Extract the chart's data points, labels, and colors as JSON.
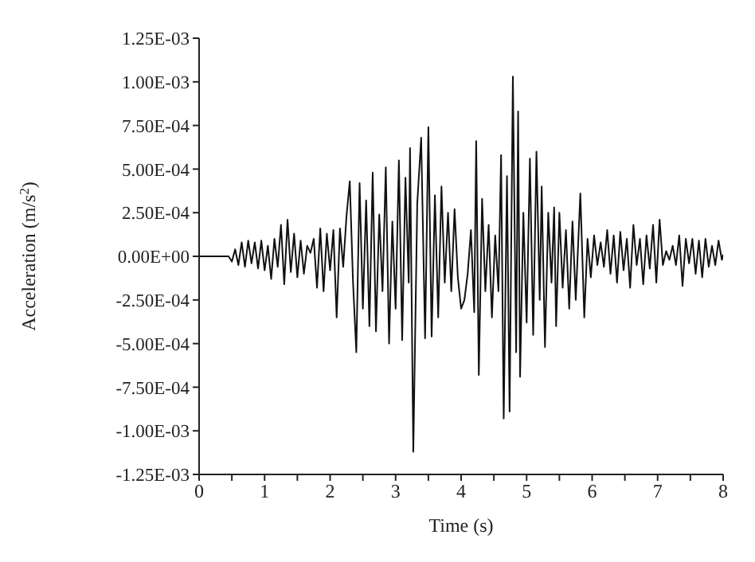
{
  "chart_data": {
    "type": "line",
    "xlabel": "Time (s)",
    "ylabel": "Acceleration (m/s$^{2}$)",
    "x": [
      0,
      0.45,
      0.5,
      0.55,
      0.6,
      0.65,
      0.7,
      0.75,
      0.8,
      0.85,
      0.9,
      0.95,
      1.0,
      1.05,
      1.1,
      1.15,
      1.2,
      1.25,
      1.3,
      1.35,
      1.4,
      1.45,
      1.5,
      1.55,
      1.6,
      1.65,
      1.7,
      1.75,
      1.8,
      1.85,
      1.9,
      1.95,
      2.0,
      2.05,
      2.1,
      2.15,
      2.2,
      2.25,
      2.3,
      2.35,
      2.4,
      2.45,
      2.5,
      2.55,
      2.6,
      2.65,
      2.7,
      2.75,
      2.8,
      2.85,
      2.9,
      2.95,
      3.0,
      3.05,
      3.1,
      3.15,
      3.2,
      3.22,
      3.27,
      3.33,
      3.39,
      3.45,
      3.5,
      3.55,
      3.6,
      3.65,
      3.7,
      3.75,
      3.8,
      3.85,
      3.9,
      3.95,
      4.0,
      4.05,
      4.1,
      4.15,
      4.2,
      4.23,
      4.27,
      4.32,
      4.37,
      4.42,
      4.47,
      4.52,
      4.57,
      4.61,
      4.65,
      4.7,
      4.74,
      4.79,
      4.84,
      4.87,
      4.9,
      4.95,
      5.0,
      5.05,
      5.1,
      5.15,
      5.2,
      5.23,
      5.28,
      5.33,
      5.38,
      5.42,
      5.45,
      5.5,
      5.55,
      5.6,
      5.65,
      5.7,
      5.75,
      5.82,
      5.88,
      5.93,
      5.98,
      6.03,
      6.08,
      6.13,
      6.18,
      6.23,
      6.28,
      6.33,
      6.38,
      6.43,
      6.48,
      6.53,
      6.58,
      6.63,
      6.68,
      6.73,
      6.78,
      6.83,
      6.88,
      6.93,
      6.98,
      7.03,
      7.08,
      7.13,
      7.18,
      7.23,
      7.28,
      7.33,
      7.38,
      7.43,
      7.48,
      7.53,
      7.58,
      7.63,
      7.68,
      7.73,
      7.78,
      7.83,
      7.88,
      7.93,
      7.98,
      8.0
    ],
    "series": [
      {
        "color": "#111111",
        "values": [
          0,
          0,
          -3e-05,
          4e-05,
          -5e-05,
          8e-05,
          -6e-05,
          9e-05,
          -4e-05,
          8e-05,
          -7e-05,
          9e-05,
          -8e-05,
          6e-05,
          -0.00013,
          0.0001,
          -6e-05,
          0.00018,
          -0.00016,
          0.00021,
          -9e-05,
          0.00013,
          -0.00012,
          9e-05,
          -0.0001,
          6e-05,
          2e-05,
          0.0001,
          -0.00018,
          0.00016,
          -0.0002,
          0.00013,
          -8e-05,
          0.00015,
          -0.00035,
          0.00016,
          -6e-05,
          0.00023,
          0.00043,
          -0.00015,
          -0.00055,
          0.00042,
          -0.0003,
          0.00032,
          -0.0004,
          0.00048,
          -0.00043,
          0.00024,
          -0.0002,
          0.00051,
          -0.0005,
          0.0002,
          -0.0003,
          0.00055,
          -0.00048,
          0.00045,
          -0.00015,
          0.00062,
          -0.00112,
          0.0003,
          0.00068,
          -0.00047,
          0.00074,
          -0.00046,
          0.00035,
          -0.00035,
          0.0004,
          -0.00015,
          0.00025,
          -0.0002,
          0.00027,
          -0.00012,
          -0.0003,
          -0.00025,
          -0.0001,
          0.00015,
          -0.00032,
          0.00066,
          -0.00068,
          0.00033,
          -0.0002,
          0.00018,
          -0.00035,
          0.00012,
          -0.0002,
          0.00058,
          -0.00093,
          0.00046,
          -0.00089,
          0.00103,
          -0.00055,
          0.00083,
          -0.00069,
          0.00025,
          -0.00038,
          0.00056,
          -0.00045,
          0.0006,
          -0.00025,
          0.0004,
          -0.00052,
          0.00025,
          -0.00015,
          0.00028,
          -0.0004,
          0.00025,
          -0.00018,
          0.00015,
          -0.0003,
          0.0002,
          -0.00025,
          0.00036,
          -0.00035,
          0.0001,
          -0.00012,
          0.00012,
          -5e-05,
          8e-05,
          -6e-05,
          0.00015,
          -0.0001,
          0.00012,
          -0.00015,
          0.00014,
          -8e-05,
          0.0001,
          -0.00018,
          0.00018,
          -5e-05,
          0.0001,
          -0.00016,
          0.00012,
          -7e-05,
          0.00018,
          -0.00015,
          0.00021,
          -5e-05,
          3e-05,
          -2e-05,
          6e-05,
          -5e-05,
          0.00012,
          -0.00017,
          0.0001,
          -4e-05,
          0.0001,
          -0.0001,
          9e-05,
          -0.00012,
          0.0001,
          -6e-05,
          6e-05,
          -5e-05,
          9e-05,
          -2e-05,
          1e-05
        ]
      }
    ],
    "xlim": [
      0,
      8
    ],
    "xticks": [
      0,
      {
        "value": 0.5,
        "label": null
      },
      1,
      {
        "value": 1.5,
        "label": null
      },
      2,
      {
        "value": 2.5,
        "label": null
      },
      3,
      {
        "value": 3.5,
        "label": null
      },
      4,
      {
        "value": 4.5,
        "label": null
      },
      5,
      {
        "value": 5.5,
        "label": null
      },
      6,
      {
        "value": 6.5,
        "label": null
      },
      7,
      {
        "value": 7.5,
        "label": null
      },
      8
    ],
    "ylim": [
      -0.00125,
      0.00125
    ],
    "yticks": [
      {
        "value": -0.00125,
        "label": "-1.25E-03"
      },
      {
        "value": -0.001,
        "label": "-1.00E-03"
      },
      {
        "value": -0.00075,
        "label": "-7.50E-04"
      },
      {
        "value": -0.0005,
        "label": "-5.00E-04"
      },
      {
        "value": -0.00025,
        "label": "-2.50E-04"
      },
      {
        "value": 0,
        "label": "0.00E+00"
      },
      {
        "value": 0.00025,
        "label": "2.50E-04"
      },
      {
        "value": 0.0005,
        "label": "5.00E-04"
      },
      {
        "value": 0.00075,
        "label": "7.50E-04"
      },
      {
        "value": 0.001,
        "label": "1.00E-03"
      },
      {
        "value": 0.00125,
        "label": "1.25E-03"
      }
    ],
    "grid": false,
    "legend": false,
    "marker": "none",
    "line_style": "solid"
  }
}
